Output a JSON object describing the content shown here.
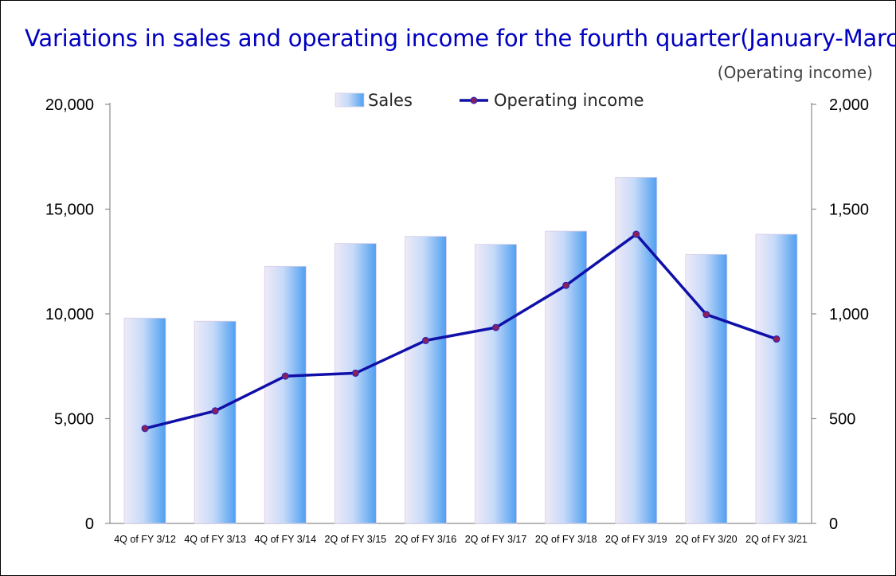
{
  "page": {
    "title": "Variations in sales and operating income for the fourth quarter(January-March)",
    "right_unit": "(Operating income)"
  },
  "chart_data": {
    "type": "bar",
    "title": "Variations in sales and operating income for the fourth quarter(January-March)",
    "categories": [
      "4Q of FY 3/12",
      "4Q of FY 3/13",
      "4Q of FY 3/14",
      "2Q of FY 3/15",
      "2Q of FY 3/16",
      "2Q of FY 3/17",
      "2Q of FY 3/18",
      "2Q of FY 3/19",
      "2Q of FY 3/20",
      "2Q of FY 3/21"
    ],
    "series": [
      {
        "name": "Sales",
        "type": "bar",
        "axis": "left",
        "values": [
          9800,
          9650,
          12270,
          13360,
          13700,
          13320,
          13950,
          16520,
          12840,
          13800
        ]
      },
      {
        "name": "Operating income",
        "type": "line",
        "axis": "right",
        "values": [
          453,
          537,
          703,
          717,
          873,
          935,
          1136,
          1380,
          997,
          880
        ]
      }
    ],
    "y_left": {
      "min": 0,
      "max": 20000,
      "ticks": [
        "0",
        "5,000",
        "10,000",
        "15,000",
        "20,000"
      ]
    },
    "y_right": {
      "min": 0,
      "max": 2000,
      "ticks": [
        "0",
        "500",
        "1,000",
        "1,500",
        "2,000"
      ]
    },
    "ylabel_right": "(Operating income)",
    "legend_position": "top-center",
    "grid": false,
    "colors": {
      "bar_light": "#ece8f6",
      "bar_dark": "#5aa6f0",
      "line": "#1010a8",
      "marker_fill": "#8a1f5a",
      "title": "#0000c0"
    }
  }
}
